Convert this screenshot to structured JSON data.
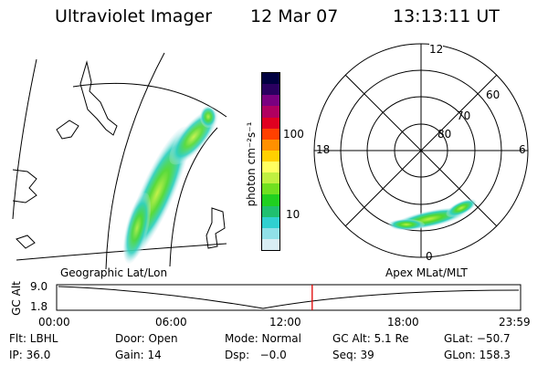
{
  "header": {
    "title": "Ultraviolet Imager",
    "date": "12 Mar 07",
    "time": "13:13:11 UT"
  },
  "panels": {
    "geo_label": "Geographic Lat/Lon",
    "polar_label": "Apex MLat/MLT"
  },
  "colorbar": {
    "unit_label": "photon cm⁻²s⁻¹",
    "ticks": [
      "100",
      "10"
    ],
    "colors": [
      "#000040",
      "#2a0060",
      "#7a0080",
      "#b00060",
      "#e00020",
      "#ff4000",
      "#ff9000",
      "#ffd000",
      "#ffff60",
      "#c0f040",
      "#70e020",
      "#20d020",
      "#20c070",
      "#30d0d0",
      "#90e0e8",
      "#d8eef4"
    ]
  },
  "polar": {
    "mlt_labels": {
      "top": "12",
      "left": "18",
      "right": "6",
      "bottom": "0"
    },
    "lat_labels": [
      "80",
      "70",
      "60"
    ]
  },
  "timeline": {
    "axis_label": "GC Alt",
    "y_ticks": [
      "9.0",
      "1.8"
    ],
    "x_ticks": [
      "00:00",
      "06:00",
      "12:00",
      "18:00",
      "23:59"
    ],
    "current_time_fraction": 0.5508
  },
  "info": {
    "row1": {
      "flt": "Flt: LBHL",
      "door": "Door: Open",
      "mode": "Mode: Normal",
      "gcalt": "GC Alt: 5.1 Re",
      "glat": "GLat: −50.7"
    },
    "row2": {
      "ip": "IP: 36.0",
      "gain": "Gain: 14",
      "dsp": "Dsp:   −0.0",
      "seq": "Seq: 39",
      "glon": "GLon: 158.3"
    }
  }
}
